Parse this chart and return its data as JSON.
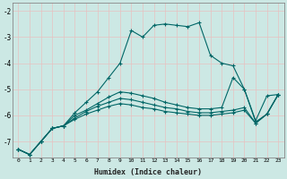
{
  "xlabel": "Humidex (Indice chaleur)",
  "background_color": "#cce8e4",
  "grid_color": "#e8c0c0",
  "line_color": "#006666",
  "xlim": [
    -0.5,
    23.5
  ],
  "ylim": [
    -7.6,
    -1.7
  ],
  "yticks": [
    -7,
    -6,
    -5,
    -4,
    -3,
    -2
  ],
  "xticks": [
    0,
    1,
    2,
    3,
    4,
    5,
    6,
    7,
    8,
    9,
    10,
    11,
    12,
    13,
    14,
    15,
    16,
    17,
    18,
    19,
    20,
    21,
    22,
    23
  ],
  "series": [
    {
      "x": [
        0,
        1,
        2,
        3,
        4,
        5,
        6,
        7,
        8,
        9,
        10,
        11,
        12,
        13,
        14,
        15,
        16,
        17,
        18,
        19,
        20,
        21,
        22,
        23
      ],
      "y": [
        -7.3,
        -7.5,
        -7.0,
        -6.5,
        -6.4,
        -5.9,
        -5.5,
        -5.1,
        -4.55,
        -4.0,
        -2.75,
        -3.0,
        -2.55,
        -2.5,
        -2.55,
        -2.6,
        -2.45,
        -3.7,
        -4.0,
        -4.1,
        -5.0,
        -6.2,
        -5.25,
        -5.2
      ]
    },
    {
      "x": [
        0,
        1,
        2,
        3,
        4,
        5,
        6,
        7,
        8,
        9,
        10,
        11,
        12,
        13,
        14,
        15,
        16,
        17,
        18,
        19,
        20,
        21,
        22,
        23
      ],
      "y": [
        -7.3,
        -7.5,
        -7.0,
        -6.5,
        -6.4,
        -6.0,
        -5.8,
        -5.55,
        -5.3,
        -5.1,
        -5.15,
        -5.25,
        -5.35,
        -5.5,
        -5.6,
        -5.7,
        -5.75,
        -5.75,
        -5.7,
        -4.55,
        -5.0,
        -6.25,
        -5.95,
        -5.2
      ]
    },
    {
      "x": [
        0,
        1,
        2,
        3,
        4,
        5,
        6,
        7,
        8,
        9,
        10,
        11,
        12,
        13,
        14,
        15,
        16,
        17,
        18,
        19,
        20,
        21,
        22,
        23
      ],
      "y": [
        -7.3,
        -7.5,
        -7.0,
        -6.5,
        -6.4,
        -6.1,
        -5.85,
        -5.65,
        -5.5,
        -5.35,
        -5.4,
        -5.5,
        -5.6,
        -5.7,
        -5.75,
        -5.85,
        -5.9,
        -5.9,
        -5.85,
        -5.8,
        -5.7,
        -6.3,
        -5.95,
        -5.2
      ]
    },
    {
      "x": [
        0,
        1,
        2,
        3,
        4,
        5,
        6,
        7,
        8,
        9,
        10,
        11,
        12,
        13,
        14,
        15,
        16,
        17,
        18,
        19,
        20,
        21,
        22,
        23
      ],
      "y": [
        -7.3,
        -7.5,
        -7.0,
        -6.5,
        -6.4,
        -6.15,
        -5.95,
        -5.8,
        -5.65,
        -5.55,
        -5.6,
        -5.7,
        -5.75,
        -5.85,
        -5.9,
        -5.95,
        -6.0,
        -6.0,
        -5.95,
        -5.9,
        -5.8,
        -6.3,
        -5.95,
        -5.2
      ]
    }
  ]
}
